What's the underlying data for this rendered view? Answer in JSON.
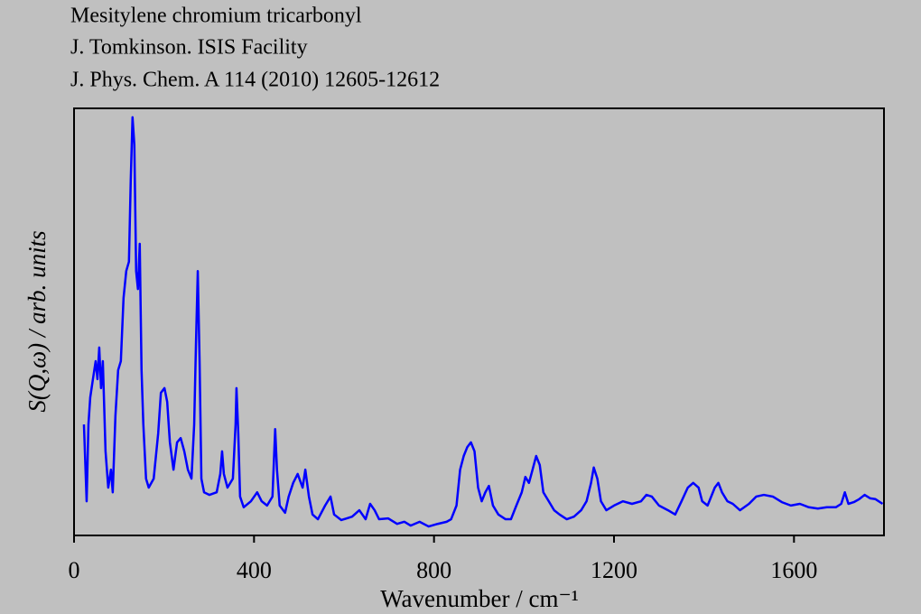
{
  "chart_data": {
    "type": "line",
    "title_lines": [
      "Mesitylene chromium tricarbonyl",
      "J. Tomkinson. ISIS Facility",
      "J. Phys. Chem. A 114 (2010) 12605-12612"
    ],
    "x_label": "Wavenumber / cm⁻¹",
    "y_label": "S(Q,ω) / arb. units",
    "xlim": [
      0,
      1800
    ],
    "xticks": [
      0,
      400,
      800,
      1200,
      1600
    ],
    "ylim": [
      0,
      100
    ],
    "x": [
      22,
      28,
      32,
      36,
      42,
      48,
      52,
      56,
      60,
      64,
      70,
      76,
      82,
      86,
      92,
      98,
      104,
      110,
      116,
      122,
      126,
      130,
      134,
      138,
      142,
      146,
      150,
      154,
      160,
      166,
      177,
      187,
      193,
      201,
      207,
      213,
      221,
      229,
      237,
      245,
      253,
      261,
      267,
      271,
      275,
      279,
      283,
      289,
      301,
      317,
      325,
      329,
      333,
      341,
      353,
      359,
      361,
      365,
      369,
      377,
      393,
      407,
      417,
      429,
      441,
      447,
      451,
      457,
      469,
      477,
      487,
      497,
      508,
      514,
      522,
      530,
      542,
      558,
      570,
      578,
      594,
      618,
      634,
      648,
      658,
      668,
      678,
      698,
      718,
      734,
      748,
      768,
      788,
      808,
      828,
      838,
      850,
      858,
      866,
      874,
      882,
      890,
      898,
      906,
      914,
      922,
      931,
      943,
      959,
      971,
      983,
      995,
      1003,
      1011,
      1019,
      1027,
      1035,
      1043,
      1055,
      1067,
      1079,
      1095,
      1111,
      1127,
      1139,
      1149,
      1155,
      1163,
      1171,
      1183,
      1200,
      1220,
      1240,
      1260,
      1272,
      1284,
      1300,
      1320,
      1336,
      1350,
      1364,
      1376,
      1388,
      1396,
      1408,
      1424,
      1432,
      1440,
      1452,
      1464,
      1480,
      1500,
      1516,
      1533,
      1553,
      1573,
      1593,
      1613,
      1633,
      1653,
      1673,
      1693,
      1705,
      1713,
      1721,
      1733,
      1745,
      1757,
      1769,
      1781,
      1797
    ],
    "series": [
      {
        "color": "#0000ff",
        "values": [
          26.0,
          8.0,
          26.0,
          32.3,
          36.6,
          40.8,
          36.6,
          44.0,
          34.5,
          40.8,
          19.7,
          11.2,
          15.4,
          10.1,
          28.1,
          38.7,
          40.8,
          55.6,
          61.9,
          64.1,
          83.1,
          97.9,
          91.5,
          61.9,
          57.7,
          68.3,
          38.7,
          26.0,
          13.3,
          11.2,
          13.3,
          23.9,
          33.4,
          34.5,
          31.3,
          21.8,
          15.4,
          21.8,
          22.8,
          19.7,
          15.4,
          13.3,
          26.0,
          45.0,
          61.9,
          40.8,
          13.3,
          10.1,
          9.5,
          10.1,
          14.4,
          19.7,
          14.4,
          11.2,
          13.3,
          26.0,
          34.5,
          23.9,
          9.1,
          6.6,
          8.0,
          10.1,
          8.0,
          7.0,
          9.1,
          24.9,
          15.4,
          7.0,
          5.3,
          9.1,
          12.3,
          14.4,
          11.2,
          15.4,
          9.1,
          4.9,
          3.8,
          7.0,
          9.1,
          4.9,
          3.6,
          4.4,
          5.9,
          3.8,
          7.4,
          5.9,
          3.8,
          4.0,
          2.7,
          3.2,
          2.3,
          3.2,
          2.1,
          2.7,
          3.2,
          3.8,
          7.0,
          15.4,
          18.6,
          20.7,
          21.8,
          19.7,
          11.2,
          8.0,
          10.1,
          11.6,
          7.0,
          4.9,
          3.8,
          3.8,
          7.0,
          10.1,
          13.7,
          12.3,
          15.4,
          18.6,
          16.5,
          10.1,
          8.0,
          5.9,
          4.9,
          3.8,
          4.4,
          5.9,
          8.0,
          12.3,
          15.9,
          13.3,
          8.0,
          5.9,
          7.0,
          8.0,
          7.4,
          8.0,
          9.5,
          9.1,
          7.0,
          5.9,
          4.9,
          8.0,
          11.2,
          12.3,
          11.2,
          8.0,
          7.0,
          11.2,
          12.3,
          10.1,
          8.0,
          7.4,
          5.9,
          7.4,
          9.1,
          9.5,
          9.1,
          7.8,
          7.0,
          7.4,
          6.6,
          6.3,
          6.6,
          6.6,
          7.4,
          10.1,
          7.4,
          7.8,
          8.5,
          9.5,
          8.7,
          8.5,
          7.4
        ]
      }
    ]
  }
}
